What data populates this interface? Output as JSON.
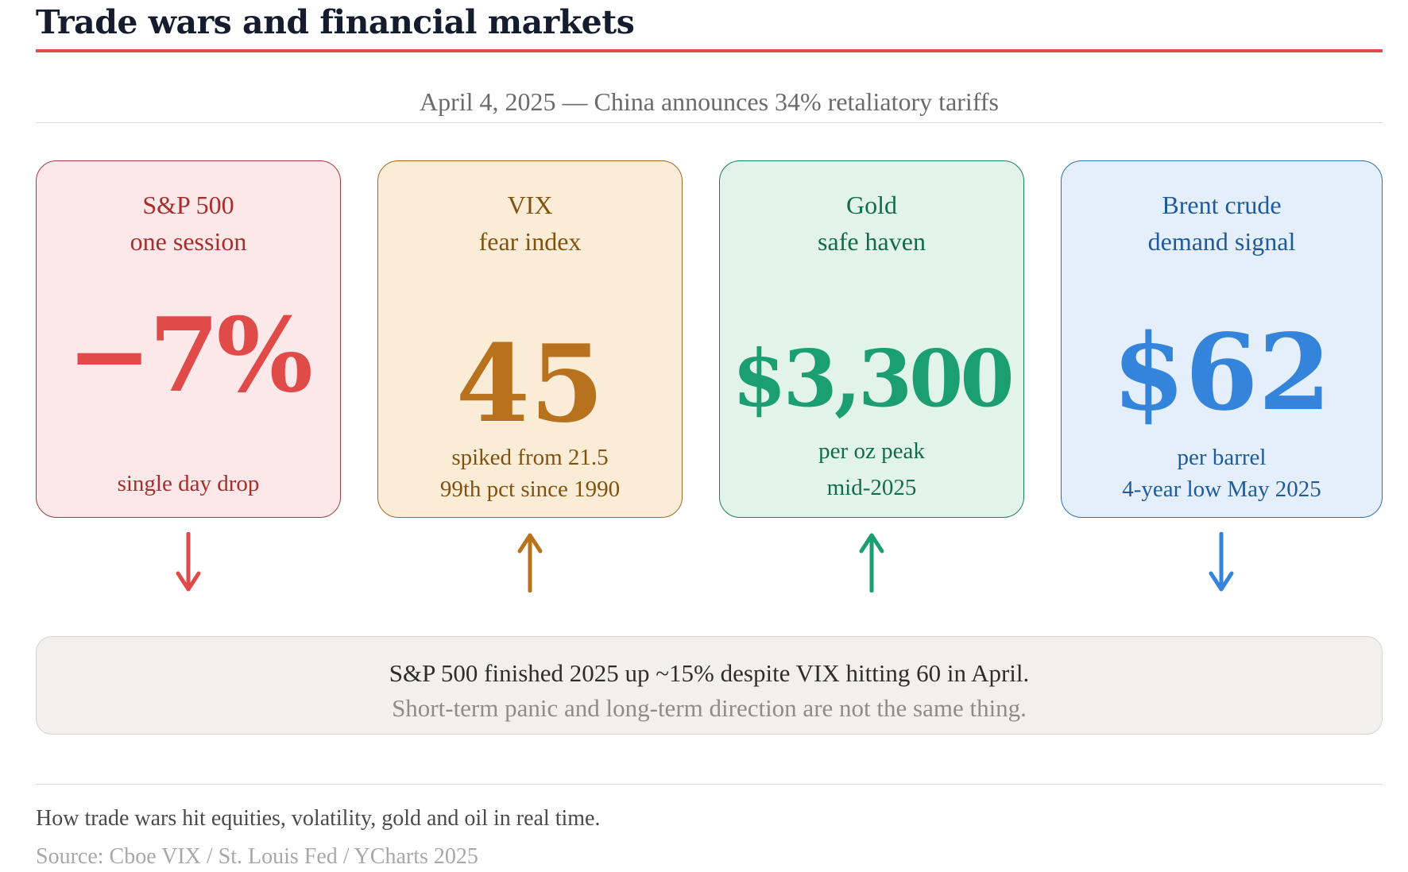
{
  "title": "Trade wars and financial markets",
  "subtitle": "April 4, 2025 — China announces 34% retaliatory tariffs",
  "cards": [
    {
      "label_line1": "S&P 500",
      "label_line2": "one session",
      "value": "−7%",
      "note_line1": "single day drop",
      "note_line2": "",
      "direction": "down",
      "accent": "#e04a48"
    },
    {
      "label_line1": "VIX",
      "label_line2": "fear index",
      "value": "45",
      "note_line1": "spiked from 21.5",
      "note_line2": "99th pct since 1990",
      "direction": "up",
      "accent": "#b8711c"
    },
    {
      "label_line1": "Gold",
      "label_line2": "safe haven",
      "value": "$3,300",
      "note_line1": "per oz peak",
      "note_line2": "mid-2025",
      "direction": "up",
      "accent": "#1c9e73"
    },
    {
      "label_line1": "Brent crude",
      "label_line2": "demand signal",
      "value": "$62",
      "note_line1": "per barrel",
      "note_line2": "4-year low May 2025",
      "direction": "down",
      "accent": "#3584dc"
    }
  ],
  "summary": {
    "line1": "S&P 500 finished 2025 up ~15% despite VIX hitting 60 in April.",
    "line2": "Short-term panic and long-term direction are not the same thing."
  },
  "caption": "How trade wars hit equities, volatility, gold and oil in real time.",
  "source": "Source: Cboe VIX / St. Louis Fed / YCharts 2025"
}
